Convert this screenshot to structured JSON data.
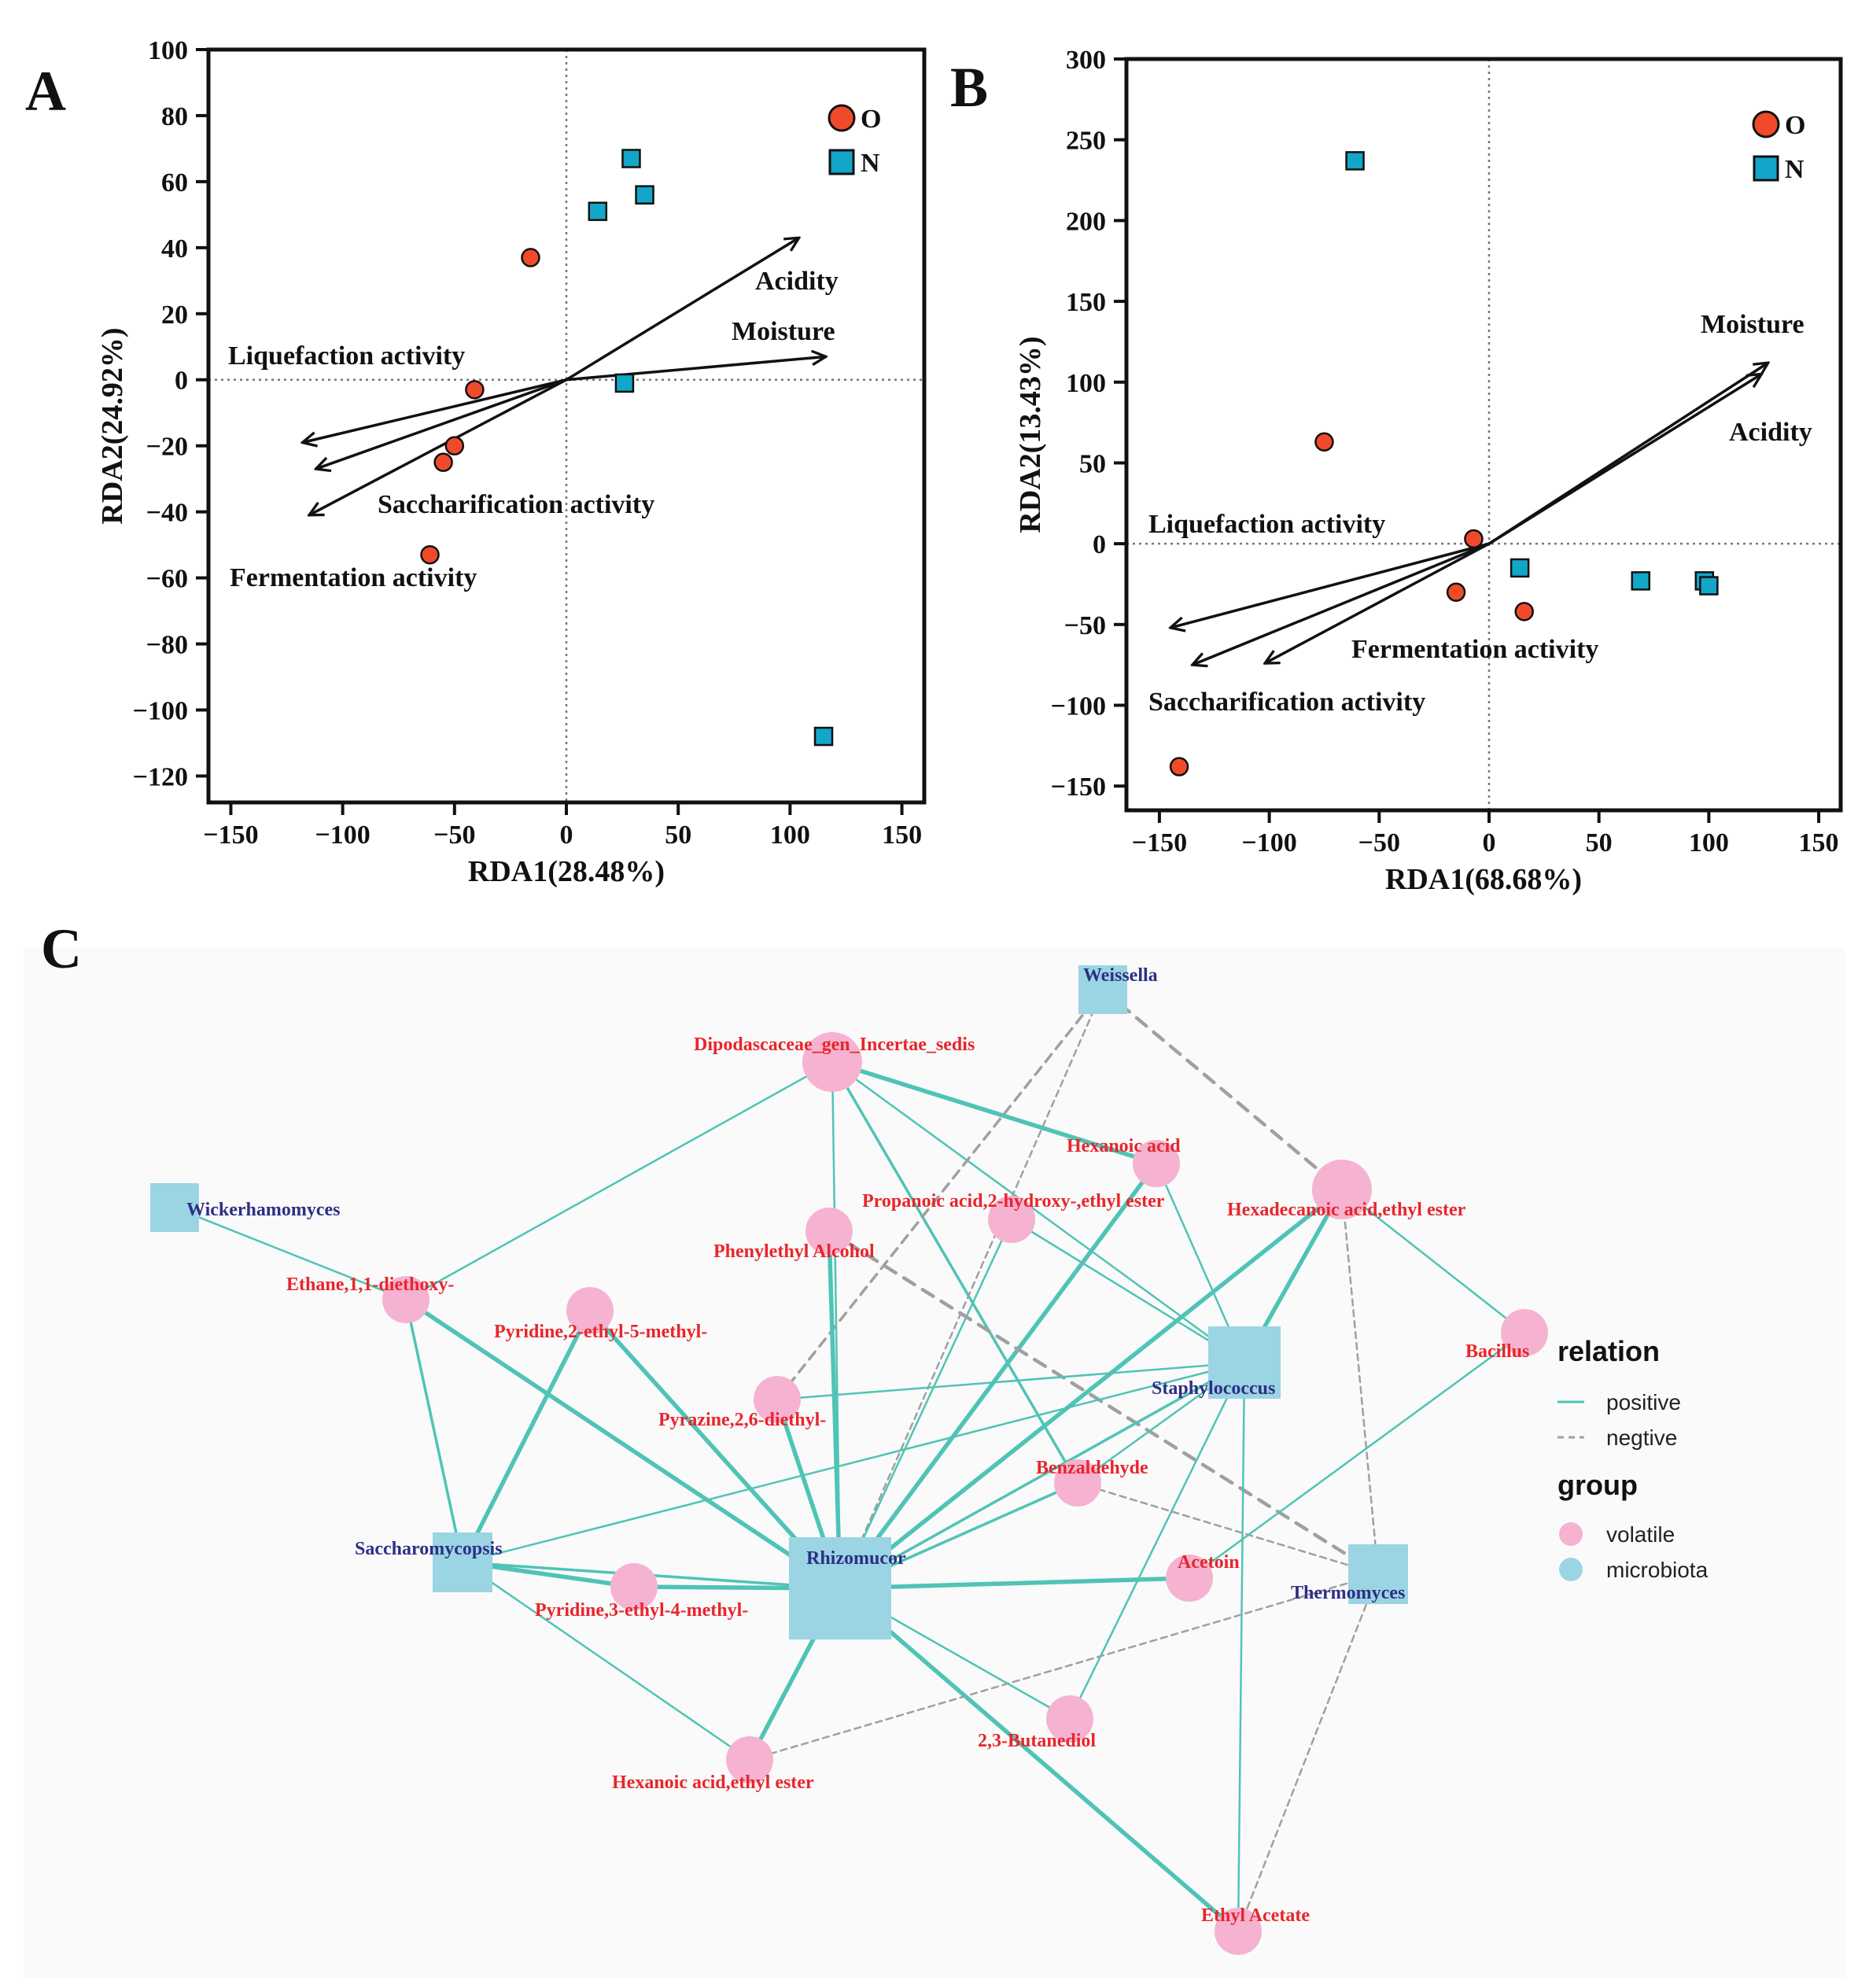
{
  "colors": {
    "group_O": "#f04a2b",
    "group_N": "#12a6c8",
    "volatile": "#f6b2d1",
    "microbiota": "#9bd5e3",
    "positive": "#4fc4b6",
    "negtive": "#a0a0a0"
  },
  "chart_data": [
    {
      "panel": "A",
      "type": "scatter",
      "xlabel": "RDA1(28.48%)",
      "ylabel": "RDA2(24.92%)",
      "xlim": [
        -160,
        160
      ],
      "ylim": [
        -128,
        100
      ],
      "xticks": [
        -150,
        -100,
        -50,
        0,
        50,
        100,
        150
      ],
      "yticks": [
        100,
        80,
        60,
        40,
        20,
        0,
        -20,
        -40,
        -60,
        -80,
        -100,
        -120
      ],
      "grid": false,
      "zero_lines": "dotted",
      "legend_position": "top-right",
      "series": [
        {
          "name": "O",
          "marker": "circle",
          "points": [
            [
              -16,
              37
            ],
            [
              -41,
              -3
            ],
            [
              -50,
              -20
            ],
            [
              -55,
              -25
            ],
            [
              -61,
              -53
            ]
          ]
        },
        {
          "name": "N",
          "marker": "square",
          "points": [
            [
              29,
              67
            ],
            [
              35,
              56
            ],
            [
              14,
              51
            ],
            [
              26,
              -1
            ],
            [
              115,
              -108
            ]
          ]
        }
      ],
      "arrows": [
        {
          "label": "Acidity",
          "end": [
            104,
            43
          ]
        },
        {
          "label": "Moisture",
          "end": [
            116,
            7
          ]
        },
        {
          "label": "Liquefaction activity",
          "end": [
            -118,
            -19
          ]
        },
        {
          "label": "Saccharification activity",
          "end": [
            -112,
            -27
          ]
        },
        {
          "label": "Fermentation activity",
          "end": [
            -115,
            -41
          ]
        }
      ]
    },
    {
      "panel": "B",
      "type": "scatter",
      "xlabel": "RDA1(68.68%)",
      "ylabel": "RDA2(13.43%)",
      "xlim": [
        -165,
        160
      ],
      "ylim": [
        -165,
        300
      ],
      "xticks": [
        -150,
        -100,
        -50,
        0,
        50,
        100,
        150
      ],
      "yticks": [
        300,
        250,
        200,
        150,
        100,
        50,
        0,
        -50,
        -100,
        -150
      ],
      "grid": false,
      "zero_lines": "dotted",
      "legend_position": "top-right",
      "series": [
        {
          "name": "O",
          "marker": "circle",
          "points": [
            [
              -75,
              63
            ],
            [
              -7,
              3
            ],
            [
              -15,
              -30
            ],
            [
              16,
              -42
            ],
            [
              -141,
              -138
            ]
          ]
        },
        {
          "name": "N",
          "marker": "square",
          "points": [
            [
              -61,
              237
            ],
            [
              14,
              -15
            ],
            [
              69,
              -23
            ],
            [
              98,
              -23
            ],
            [
              100,
              -26
            ]
          ]
        }
      ],
      "arrows": [
        {
          "label": "Moisture",
          "end": [
            127,
            112
          ]
        },
        {
          "label": "Acidity",
          "end": [
            124,
            105
          ]
        },
        {
          "label": "Liquefaction activity",
          "end": [
            -145,
            -52
          ]
        },
        {
          "label": "Saccharification activity",
          "end": [
            -135,
            -75
          ]
        },
        {
          "label": "Fermentation activity",
          "end": [
            -102,
            -74
          ]
        }
      ]
    }
  ],
  "network": {
    "panel": "C",
    "legend": {
      "relation_title": "relation",
      "positive": "positive",
      "negtive": "negtive",
      "group_title": "group",
      "volatile": "volatile",
      "microbiota": "microbiota"
    },
    "nodes": [
      {
        "id": "weissella",
        "label": "Weissella",
        "group": "microbiota",
        "size": 2
      },
      {
        "id": "wickerhamomyces",
        "label": "Wickerhamomyces",
        "group": "microbiota",
        "size": 2
      },
      {
        "id": "staphylococcus",
        "label": "Staphylococcus",
        "group": "microbiota",
        "size": 4
      },
      {
        "id": "saccharomycopsis",
        "label": "Saccharomycopsis",
        "group": "microbiota",
        "size": 3
      },
      {
        "id": "rhizomucor",
        "label": "Rhizomucor",
        "group": "microbiota",
        "size": 6
      },
      {
        "id": "thermomyces",
        "label": "Thermomyces",
        "group": "microbiota",
        "size": 3
      },
      {
        "id": "dipodascaceae",
        "label": "Dipodascaceae_gen_Incertae_sedis",
        "group": "volatile",
        "size": 4
      },
      {
        "id": "hexanoic",
        "label": "Hexanoic acid",
        "group": "volatile",
        "size": 3
      },
      {
        "id": "propanoic",
        "label": "Propanoic acid,2-hydroxy-,ethyl ester",
        "group": "volatile",
        "size": 3
      },
      {
        "id": "hexadecanoic",
        "label": "Hexadecanoic acid,ethyl ester",
        "group": "volatile",
        "size": 4
      },
      {
        "id": "phenylethyl",
        "label": "Phenylethyl Alcohol",
        "group": "volatile",
        "size": 3
      },
      {
        "id": "ethane",
        "label": "Ethane,1,1-diethoxy-",
        "group": "volatile",
        "size": 3
      },
      {
        "id": "pyridine25",
        "label": "Pyridine,2-ethyl-5-methyl-",
        "group": "volatile",
        "size": 3
      },
      {
        "id": "bacillus",
        "label": "Bacillus",
        "group": "volatile",
        "size": 3
      },
      {
        "id": "pyrazine",
        "label": "Pyrazine,2,6-diethyl-",
        "group": "volatile",
        "size": 3
      },
      {
        "id": "benzaldehyde",
        "label": "Benzaldehyde",
        "group": "volatile",
        "size": 3
      },
      {
        "id": "acetoin",
        "label": "Acetoin",
        "group": "volatile",
        "size": 3
      },
      {
        "id": "pyridine34",
        "label": "Pyridine,3-ethyl-4-methyl-",
        "group": "volatile",
        "size": 3
      },
      {
        "id": "butanediol",
        "label": "2,3-Butanediol",
        "group": "volatile",
        "size": 3
      },
      {
        "id": "hexanoicester",
        "label": "Hexanoic acid,ethyl ester",
        "group": "volatile",
        "size": 3
      },
      {
        "id": "ethylacetate",
        "label": "Ethyl Acetate",
        "group": "volatile",
        "size": 3
      }
    ],
    "edges": [
      {
        "from": "wickerhamomyces",
        "to": "ethane",
        "relation": "positive",
        "weight": 2
      },
      {
        "from": "dipodascaceae",
        "to": "ethane",
        "relation": "positive",
        "weight": 2
      },
      {
        "from": "dipodascaceae",
        "to": "hexanoic",
        "relation": "positive",
        "weight": 5
      },
      {
        "from": "dipodascaceae",
        "to": "rhizomucor",
        "relation": "positive",
        "weight": 2
      },
      {
        "from": "dipodascaceae",
        "to": "staphylococcus",
        "relation": "positive",
        "weight": 2
      },
      {
        "from": "dipodascaceae",
        "to": "benzaldehyde",
        "relation": "positive",
        "weight": 3
      },
      {
        "from": "weissella",
        "to": "hexadecanoic",
        "relation": "negtive",
        "weight": 4
      },
      {
        "from": "weissella",
        "to": "pyrazine",
        "relation": "negtive",
        "weight": 3
      },
      {
        "from": "weissella",
        "to": "rhizomucor",
        "relation": "negtive",
        "weight": 2
      },
      {
        "from": "hexanoic",
        "to": "staphylococcus",
        "relation": "positive",
        "weight": 2
      },
      {
        "from": "hexanoic",
        "to": "rhizomucor",
        "relation": "positive",
        "weight": 5
      },
      {
        "from": "propanoic",
        "to": "staphylococcus",
        "relation": "positive",
        "weight": 2
      },
      {
        "from": "propanoic",
        "to": "rhizomucor",
        "relation": "positive",
        "weight": 2
      },
      {
        "from": "hexadecanoic",
        "to": "staphylococcus",
        "relation": "positive",
        "weight": 5
      },
      {
        "from": "hexadecanoic",
        "to": "rhizomucor",
        "relation": "positive",
        "weight": 5
      },
      {
        "from": "hexadecanoic",
        "to": "bacillus",
        "relation": "positive",
        "weight": 2
      },
      {
        "from": "hexadecanoic",
        "to": "thermomyces",
        "relation": "negtive",
        "weight": 2
      },
      {
        "from": "phenylethyl",
        "to": "rhizomucor",
        "relation": "positive",
        "weight": 5
      },
      {
        "from": "phenylethyl",
        "to": "thermomyces",
        "relation": "negtive",
        "weight": 4
      },
      {
        "from": "ethane",
        "to": "saccharomycopsis",
        "relation": "positive",
        "weight": 3
      },
      {
        "from": "ethane",
        "to": "rhizomucor",
        "relation": "positive",
        "weight": 5
      },
      {
        "from": "pyridine25",
        "to": "saccharomycopsis",
        "relation": "positive",
        "weight": 5
      },
      {
        "from": "pyridine25",
        "to": "rhizomucor",
        "relation": "positive",
        "weight": 5
      },
      {
        "from": "pyrazine",
        "to": "staphylococcus",
        "relation": "positive",
        "weight": 2
      },
      {
        "from": "pyrazine",
        "to": "rhizomucor",
        "relation": "positive",
        "weight": 5
      },
      {
        "from": "staphylococcus",
        "to": "rhizomucor",
        "relation": "positive",
        "weight": 3
      },
      {
        "from": "staphylococcus",
        "to": "butanediol",
        "relation": "positive",
        "weight": 2
      },
      {
        "from": "staphylococcus",
        "to": "ethylacetate",
        "relation": "positive",
        "weight": 2
      },
      {
        "from": "saccharomycopsis",
        "to": "rhizomucor",
        "relation": "positive",
        "weight": 3
      },
      {
        "from": "saccharomycopsis",
        "to": "staphylococcus",
        "relation": "positive",
        "weight": 2
      },
      {
        "from": "saccharomycopsis",
        "to": "pyridine34",
        "relation": "positive",
        "weight": 5
      },
      {
        "from": "saccharomycopsis",
        "to": "hexanoicester",
        "relation": "positive",
        "weight": 2
      },
      {
        "from": "benzaldehyde",
        "to": "rhizomucor",
        "relation": "positive",
        "weight": 3
      },
      {
        "from": "benzaldehyde",
        "to": "staphylococcus",
        "relation": "positive",
        "weight": 2
      },
      {
        "from": "benzaldehyde",
        "to": "thermomyces",
        "relation": "negtive",
        "weight": 2
      },
      {
        "from": "rhizomucor",
        "to": "pyridine34",
        "relation": "positive",
        "weight": 5
      },
      {
        "from": "rhizomucor",
        "to": "acetoin",
        "relation": "positive",
        "weight": 5
      },
      {
        "from": "rhizomucor",
        "to": "butanediol",
        "relation": "positive",
        "weight": 2
      },
      {
        "from": "rhizomucor",
        "to": "hexanoicester",
        "relation": "positive",
        "weight": 5
      },
      {
        "from": "rhizomucor",
        "to": "ethylacetate",
        "relation": "positive",
        "weight": 5
      },
      {
        "from": "acetoin",
        "to": "bacillus",
        "relation": "positive",
        "weight": 2
      },
      {
        "from": "thermomyces",
        "to": "hexanoicester",
        "relation": "negtive",
        "weight": 2
      },
      {
        "from": "thermomyces",
        "to": "ethylacetate",
        "relation": "negtive",
        "weight": 2
      }
    ]
  }
}
